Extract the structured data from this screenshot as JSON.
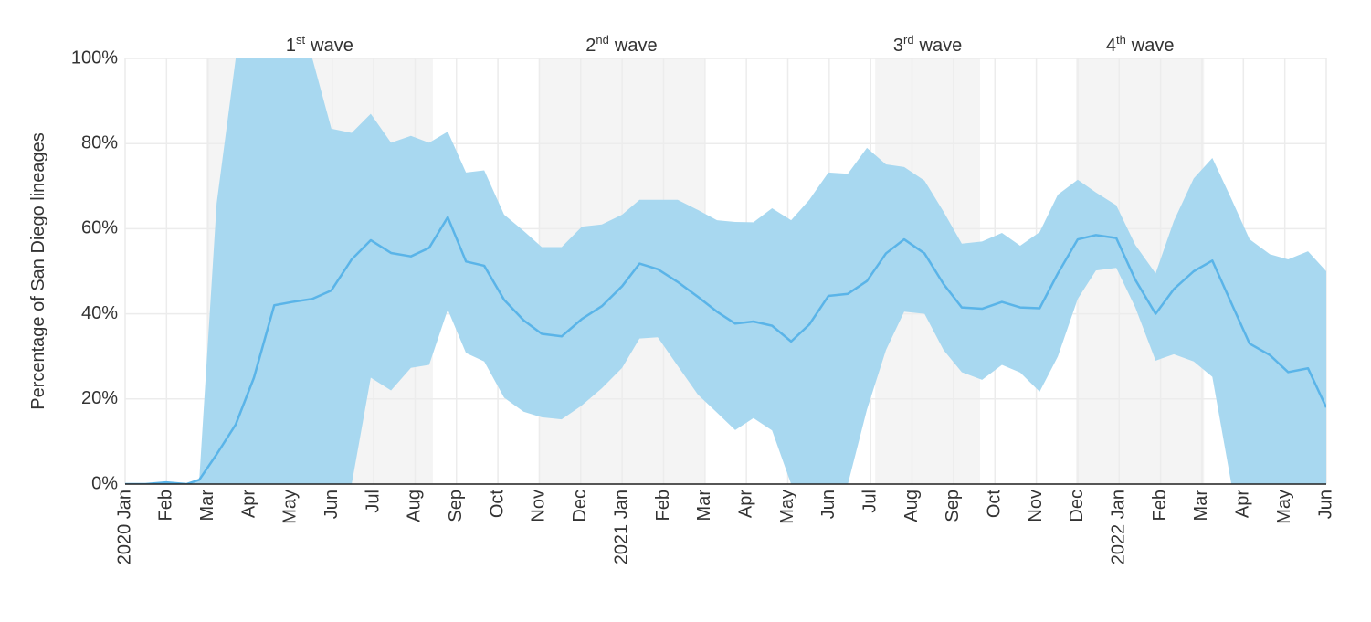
{
  "chart_data": {
    "type": "line",
    "ylabel": "Percentage of San Diego lineages",
    "xlim": [
      0,
      29
    ],
    "ylim": [
      0,
      100
    ],
    "yticks": [
      {
        "value": 0,
        "label": "0%"
      },
      {
        "value": 20,
        "label": "20%"
      },
      {
        "value": 40,
        "label": "40%"
      },
      {
        "value": 60,
        "label": "60%"
      },
      {
        "value": 80,
        "label": "80%"
      },
      {
        "value": 100,
        "label": "100%"
      }
    ],
    "xticks": [
      {
        "value": 0,
        "label": "2020 Jan"
      },
      {
        "value": 1,
        "label": "Feb"
      },
      {
        "value": 2,
        "label": "Mar"
      },
      {
        "value": 3,
        "label": "Apr"
      },
      {
        "value": 4,
        "label": "May"
      },
      {
        "value": 5,
        "label": "Jun"
      },
      {
        "value": 6,
        "label": "Jul"
      },
      {
        "value": 7,
        "label": "Aug"
      },
      {
        "value": 8,
        "label": "Sep"
      },
      {
        "value": 9,
        "label": "Oct"
      },
      {
        "value": 10,
        "label": "Nov"
      },
      {
        "value": 11,
        "label": "Dec"
      },
      {
        "value": 12,
        "label": "2021 Jan"
      },
      {
        "value": 13,
        "label": "Feb"
      },
      {
        "value": 14,
        "label": "Mar"
      },
      {
        "value": 15,
        "label": "Apr"
      },
      {
        "value": 16,
        "label": "May"
      },
      {
        "value": 17,
        "label": "Jun"
      },
      {
        "value": 18,
        "label": "Jul"
      },
      {
        "value": 19,
        "label": "Aug"
      },
      {
        "value": 20,
        "label": "Sep"
      },
      {
        "value": 21,
        "label": "Oct"
      },
      {
        "value": 22,
        "label": "Nov"
      },
      {
        "value": 23,
        "label": "Dec"
      },
      {
        "value": 24,
        "label": "2022 Jan"
      },
      {
        "value": 25,
        "label": "Feb"
      },
      {
        "value": 26,
        "label": "Mar"
      },
      {
        "value": 27,
        "label": "Apr"
      },
      {
        "value": 28,
        "label": "May"
      },
      {
        "value": 29,
        "label": "Jun"
      }
    ],
    "grid": true,
    "color": "#5ab4e8",
    "band_color": "#a8d8f0",
    "wave_color": "#f4f4f4",
    "waves": [
      {
        "number": "1",
        "suffix": "st",
        "word": "wave",
        "start": 1.96,
        "end": 7.43
      },
      {
        "number": "2",
        "suffix": "nd",
        "word": "wave",
        "start": 9.99,
        "end": 13.98
      },
      {
        "number": "3",
        "suffix": "rd",
        "word": "wave",
        "start": 18.11,
        "end": 20.64
      },
      {
        "number": "4",
        "suffix": "th",
        "word": "wave",
        "start": 22.96,
        "end": 26.05
      }
    ],
    "x": [
      0,
      0.49,
      0.99,
      1.48,
      1.79,
      2.21,
      2.67,
      3.11,
      3.6,
      4.04,
      4.52,
      4.98,
      5.47,
      5.93,
      6.42,
      6.9,
      7.34,
      7.79,
      8.23,
      8.67,
      9.15,
      9.62,
      10.06,
      10.54,
      11.03,
      11.51,
      12.0,
      12.42,
      12.86,
      13.34,
      13.83,
      14.29,
      14.73,
      15.17,
      15.62,
      16.08,
      16.52,
      16.98,
      17.45,
      17.91,
      18.37,
      18.81,
      19.3,
      19.76,
      20.2,
      20.69,
      21.17,
      21.61,
      22.08,
      22.52,
      23.0,
      23.44,
      23.93,
      24.39,
      24.88,
      25.32,
      25.8,
      26.25,
      26.71,
      27.15,
      27.64,
      28.08,
      28.56,
      29.0
    ],
    "values": [
      0,
      0,
      0.4,
      0,
      1,
      7,
      14,
      25,
      42,
      42.8,
      43.5,
      45.5,
      52.8,
      57.3,
      54.3,
      53.5,
      55.5,
      62.7,
      52.3,
      51.3,
      43.3,
      38.5,
      35.3,
      34.7,
      38.8,
      41.8,
      46.5,
      51.8,
      50.5,
      47.5,
      44,
      40.5,
      37.7,
      38.2,
      37.2,
      33.5,
      37.5,
      44.2,
      44.7,
      47.7,
      54.2,
      57.5,
      54.2,
      47,
      41.5,
      41.2,
      42.8,
      41.5,
      41.3,
      49.5,
      57.5,
      58.5,
      57.8,
      48,
      40,
      45.8,
      50,
      52.5,
      42.5,
      33,
      30.3,
      26.3,
      27.2,
      18
    ],
    "upper": [
      0,
      0,
      0.4,
      0,
      1,
      66,
      100,
      100,
      100,
      100,
      100,
      83.5,
      82.5,
      87,
      80.2,
      81.8,
      80.2,
      82.8,
      73.2,
      73.7,
      63.3,
      59.5,
      55.7,
      55.7,
      60.5,
      61,
      63.3,
      66.8,
      66.8,
      66.8,
      64.4,
      62,
      61.6,
      61.5,
      64.8,
      62,
      66.8,
      73.2,
      72.9,
      79,
      75.1,
      74.5,
      71.3,
      64,
      56.5,
      57,
      59,
      56,
      59.2,
      68,
      71.5,
      68.5,
      65.5,
      56.2,
      49.5,
      61.8,
      71.8,
      76.6,
      67,
      57.5,
      54,
      52.8,
      54.7,
      50
    ],
    "lower": [
      0,
      0,
      0,
      0,
      0,
      0,
      0,
      0,
      0,
      0,
      0,
      0,
      0,
      25,
      22,
      27.3,
      28,
      41,
      30.8,
      28.8,
      20.3,
      17,
      15.7,
      15.2,
      18.5,
      22.5,
      27.3,
      34.2,
      34.5,
      27.8,
      21,
      16.8,
      12.7,
      15.5,
      12.6,
      0,
      0,
      0,
      0,
      17.5,
      31.5,
      40.5,
      40,
      31.5,
      26.3,
      24.5,
      28,
      26.2,
      21.7,
      30,
      43.5,
      50.2,
      50.8,
      41.5,
      29,
      30.5,
      28.8,
      25.2,
      0,
      0,
      0,
      0,
      0,
      0
    ]
  }
}
